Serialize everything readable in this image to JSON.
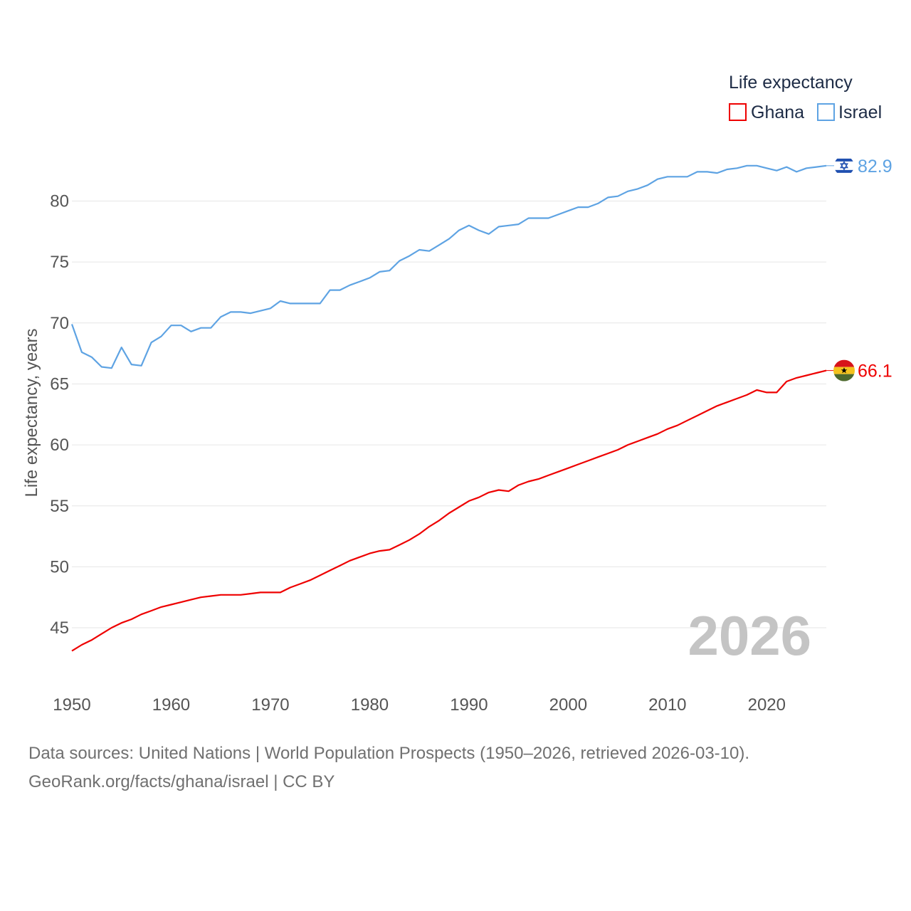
{
  "chart_data": {
    "type": "line",
    "title": "Life expectancy",
    "xlabel": "",
    "ylabel": "Life expectancy, years",
    "xlim": [
      1950,
      2026
    ],
    "ylim": [
      41.5,
      84
    ],
    "x_ticks": [
      1950,
      1960,
      1970,
      1980,
      1990,
      2000,
      2010,
      2020
    ],
    "y_ticks": [
      45,
      50,
      55,
      60,
      65,
      70,
      75,
      80
    ],
    "grid": true,
    "legend_position": "top-right",
    "current_year": "2026",
    "x": [
      1950,
      1951,
      1952,
      1953,
      1954,
      1955,
      1956,
      1957,
      1958,
      1959,
      1960,
      1961,
      1962,
      1963,
      1964,
      1965,
      1966,
      1967,
      1968,
      1969,
      1970,
      1971,
      1972,
      1973,
      1974,
      1975,
      1976,
      1977,
      1978,
      1979,
      1980,
      1981,
      1982,
      1983,
      1984,
      1985,
      1986,
      1987,
      1988,
      1989,
      1990,
      1991,
      1992,
      1993,
      1994,
      1995,
      1996,
      1997,
      1998,
      1999,
      2000,
      2001,
      2002,
      2003,
      2004,
      2005,
      2006,
      2007,
      2008,
      2009,
      2010,
      2011,
      2012,
      2013,
      2014,
      2015,
      2016,
      2017,
      2018,
      2019,
      2020,
      2021,
      2022,
      2023,
      2024,
      2025,
      2026
    ],
    "series": [
      {
        "name": "Ghana",
        "color": "#ee0000",
        "end_label": "66.1",
        "flag_icon": "ghana-flag-icon",
        "values": [
          43.1,
          43.6,
          44.0,
          44.5,
          45.0,
          45.4,
          45.7,
          46.1,
          46.4,
          46.7,
          46.9,
          47.1,
          47.3,
          47.5,
          47.6,
          47.7,
          47.7,
          47.7,
          47.8,
          47.9,
          47.9,
          47.9,
          48.3,
          48.6,
          48.9,
          49.3,
          49.7,
          50.1,
          50.5,
          50.8,
          51.1,
          51.3,
          51.4,
          51.8,
          52.2,
          52.7,
          53.3,
          53.8,
          54.4,
          54.9,
          55.4,
          55.7,
          56.1,
          56.3,
          56.2,
          56.7,
          57.0,
          57.2,
          57.5,
          57.8,
          58.1,
          58.4,
          58.7,
          59.0,
          59.3,
          59.6,
          60.0,
          60.3,
          60.6,
          60.9,
          61.3,
          61.6,
          62.0,
          62.4,
          62.8,
          63.2,
          63.5,
          63.8,
          64.1,
          64.5,
          64.3,
          64.3,
          65.2,
          65.5,
          65.7,
          65.9,
          66.1
        ]
      },
      {
        "name": "Israel",
        "color": "#5ea3e3",
        "end_label": "82.9",
        "flag_icon": "israel-flag-icon",
        "values": [
          69.9,
          67.6,
          67.2,
          66.4,
          66.3,
          68.0,
          66.6,
          66.5,
          68.4,
          68.9,
          69.8,
          69.8,
          69.3,
          69.6,
          69.6,
          70.5,
          70.9,
          70.9,
          70.8,
          71.0,
          71.2,
          71.8,
          71.6,
          71.6,
          71.6,
          71.6,
          72.7,
          72.7,
          73.1,
          73.4,
          73.7,
          74.2,
          74.3,
          75.1,
          75.5,
          76.0,
          75.9,
          76.4,
          76.9,
          77.6,
          78.0,
          77.6,
          77.3,
          77.9,
          78.0,
          78.1,
          78.6,
          78.6,
          78.6,
          78.9,
          79.2,
          79.5,
          79.5,
          79.8,
          80.3,
          80.4,
          80.8,
          81.0,
          81.3,
          81.8,
          82.0,
          82.0,
          82.0,
          82.4,
          82.4,
          82.3,
          82.6,
          82.7,
          82.9,
          82.9,
          82.7,
          82.5,
          82.8,
          82.4,
          82.7,
          82.8,
          82.9
        ]
      }
    ]
  },
  "legend": {
    "title": "Life expectancy",
    "items": [
      "Ghana",
      "Israel"
    ]
  },
  "footer": {
    "line1": "Data sources: United Nations | World Population Prospects (1950–2026, retrieved 2026-03-10).",
    "line2": "GeoRank.org/facts/ghana/israel | CC BY"
  }
}
